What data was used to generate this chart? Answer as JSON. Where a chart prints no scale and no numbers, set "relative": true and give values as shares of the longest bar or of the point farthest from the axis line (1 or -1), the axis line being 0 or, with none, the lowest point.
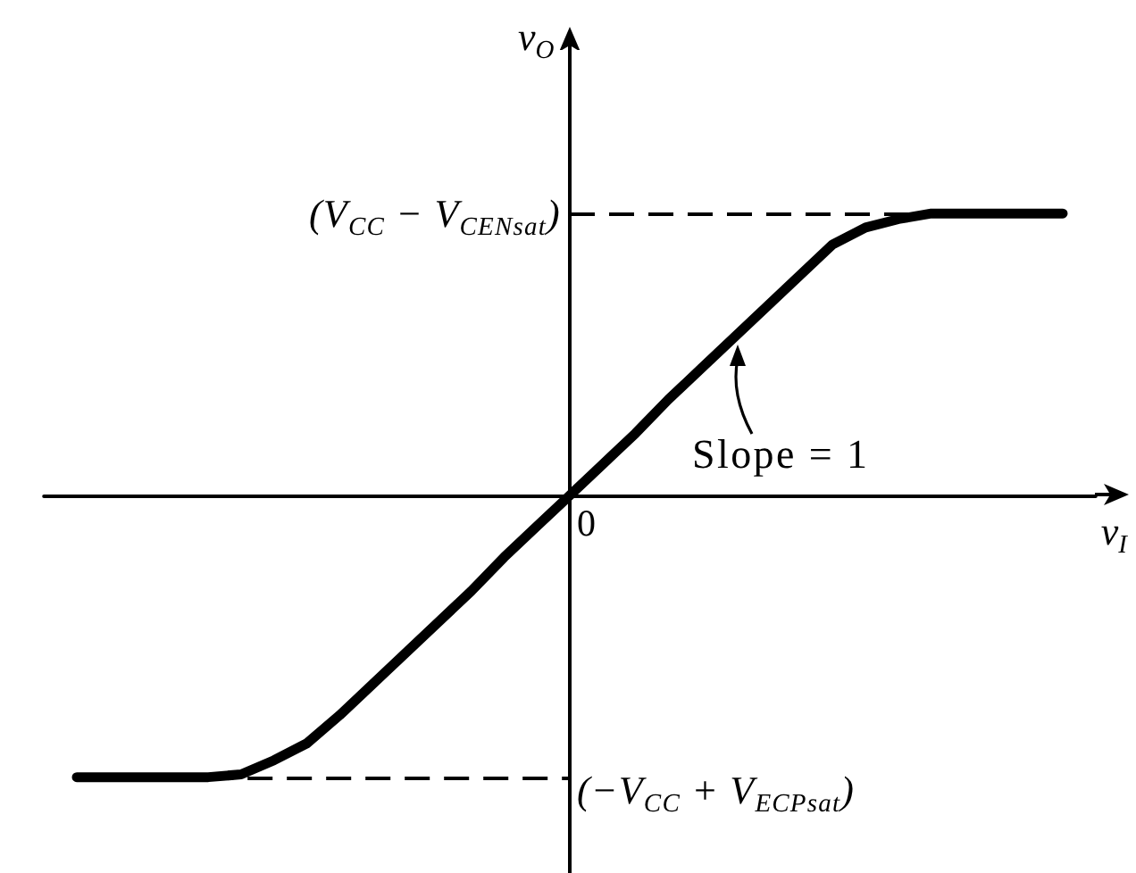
{
  "chart_data": {
    "type": "line",
    "relative": true,
    "xlabel": "v$_{I}$",
    "ylabel": "v$_{O}$",
    "categories": [
      null,
      null,
      null,
      null,
      null,
      null,
      null,
      null,
      null,
      null,
      null,
      null,
      null,
      null,
      null,
      null,
      null,
      null,
      null,
      null,
      null,
      null,
      null,
      null,
      null,
      null,
      null,
      null,
      null,
      null,
      null,
      null,
      null
    ],
    "values": [
      null,
      -1,
      -1,
      -1,
      -1,
      -1,
      -0.99,
      -0.94,
      -0.88,
      -0.78,
      -0.67,
      -0.56,
      -0.45,
      -0.34,
      -0.22,
      -0.11,
      0,
      0.11,
      0.22,
      0.34,
      0.45,
      0.56,
      0.67,
      0.78,
      0.89,
      0.95,
      0.98,
      1,
      1,
      1,
      1,
      1,
      null
    ],
    "color": "#000000",
    "marker": "none",
    "ref_lines": [
      {
        "axis": "y",
        "value": 1,
        "label": "(V$_{CC}$ − V$_{CENsat}$)",
        "color": "#000000",
        "line_style": "dashed"
      },
      {
        "axis": "y",
        "value": -1,
        "label": "(−V$_{CC}$ + V$_{ECPsat}$)",
        "color": "#000000",
        "line_style": "dashed"
      }
    ],
    "annotations": [
      "Slope = 1",
      "0"
    ]
  }
}
